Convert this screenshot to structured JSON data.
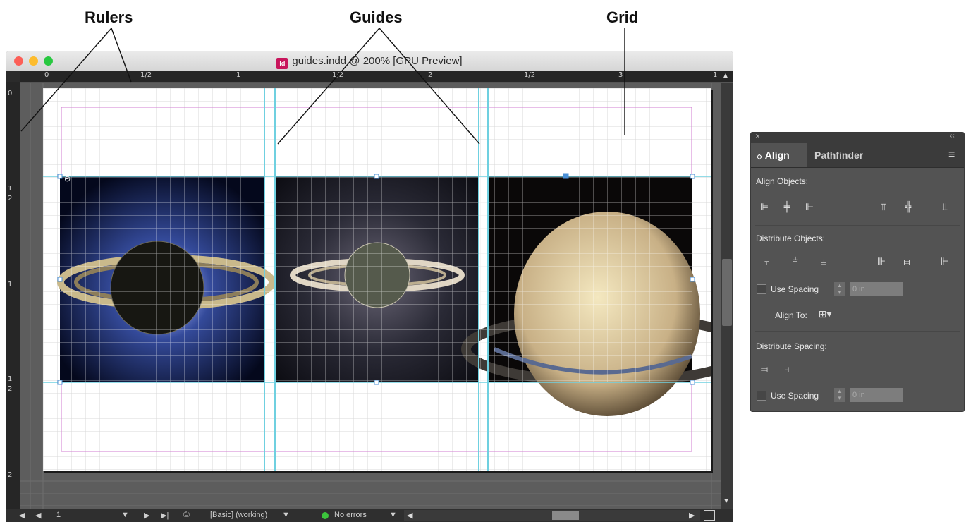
{
  "callouts": {
    "rulers": "Rulers",
    "guides": "Guides",
    "grid": "Grid"
  },
  "window": {
    "title": "guides.indd @ 200% [GPU Preview]",
    "doc_icon": "Id",
    "controls": [
      "close",
      "minimize",
      "zoom"
    ],
    "traffic_colors": [
      "#fc5f57",
      "#fdbc2e",
      "#28c840"
    ]
  },
  "ruler_top": {
    "labels": [
      "0",
      "1/2",
      "1",
      "1/2",
      "2",
      "1/2",
      "3",
      "1"
    ]
  },
  "ruler_left": {
    "labels": [
      "0",
      "1",
      "2",
      "1",
      "1",
      "2",
      "2"
    ]
  },
  "images": [
    {
      "name": "saturn-backlit-rings"
    },
    {
      "name": "saturn-rings-small"
    },
    {
      "name": "saturn-crescent"
    }
  ],
  "statusbar": {
    "page": "1",
    "style": "[Basic] (working)",
    "errors": "No errors"
  },
  "panel": {
    "tab_align": "Align",
    "tab_align_chev": "◇",
    "tab_pathfinder": "Pathfinder",
    "align_objects": "Align Objects:",
    "distribute_objects": "Distribute Objects:",
    "use_spacing_1": "Use Spacing",
    "spacing_1": "0 in",
    "align_to": "Align To:",
    "distribute_spacing": "Distribute Spacing:",
    "use_spacing_2": "Use Spacing",
    "spacing_2": "0 in",
    "close_glyph": "×",
    "collapse_glyph": "‹‹",
    "menu_glyph": "≡",
    "align_icons": [
      "align-left-edges-icon",
      "align-horizontal-centers-icon",
      "align-right-edges-icon",
      "align-top-edges-icon",
      "align-vertical-centers-icon",
      "align-bottom-edges-icon"
    ],
    "distribute_icons": [
      "distribute-top-edges-icon",
      "distribute-vertical-centers-icon",
      "distribute-bottom-edges-icon",
      "distribute-left-edges-icon",
      "distribute-horizontal-centers-icon",
      "distribute-right-edges-icon"
    ],
    "spacing_icons": [
      "distribute-vertical-space-icon",
      "distribute-horizontal-space-icon"
    ]
  },
  "colors": {
    "guide": "#6fd0e0",
    "margin": "#d07ed0",
    "grid": "#d9d9d9",
    "selection": "#4a8fd6"
  }
}
